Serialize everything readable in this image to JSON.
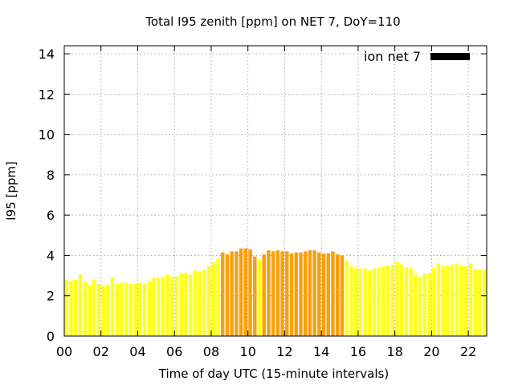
{
  "chart_data": {
    "type": "bar",
    "title": "Total I95 zenith [ppm] on NET 7, DoY=110",
    "xlabel": "Time of day UTC (15-minute intervals)",
    "ylabel": "I95 [ppm]",
    "xlim": [
      0,
      23
    ],
    "ylim": [
      0,
      14.4
    ],
    "grid": true,
    "legend_position": "top-right",
    "xtick_labels": [
      "00",
      "02",
      "04",
      "06",
      "08",
      "10",
      "12",
      "14",
      "16",
      "18",
      "20",
      "22"
    ],
    "xticks": [
      0,
      2,
      4,
      6,
      8,
      10,
      12,
      14,
      16,
      18,
      20,
      22
    ],
    "yticks": [
      0,
      2,
      4,
      6,
      8,
      10,
      12,
      14
    ],
    "colors": {
      "low": "#ffff1e",
      "high": "#f7a010",
      "legend": "#000000"
    },
    "series": [
      {
        "name": "ion net 7",
        "x": [
          0.125,
          0.375,
          0.625,
          0.875,
          1.125,
          1.375,
          1.625,
          1.875,
          2.125,
          2.375,
          2.625,
          2.875,
          3.125,
          3.375,
          3.625,
          3.875,
          4.125,
          4.375,
          4.625,
          4.875,
          5.125,
          5.375,
          5.625,
          5.875,
          6.125,
          6.375,
          6.625,
          6.875,
          7.125,
          7.375,
          7.625,
          7.875,
          8.125,
          8.375,
          8.625,
          8.875,
          9.125,
          9.375,
          9.625,
          9.875,
          10.125,
          10.375,
          10.625,
          10.875,
          11.125,
          11.375,
          11.625,
          11.875,
          12.125,
          12.375,
          12.625,
          12.875,
          13.125,
          13.375,
          13.625,
          13.875,
          14.125,
          14.375,
          14.625,
          14.875,
          15.125,
          15.375,
          15.625,
          15.875,
          16.125,
          16.375,
          16.625,
          16.875,
          17.125,
          17.375,
          17.625,
          17.875,
          18.125,
          18.375,
          18.625,
          18.875,
          19.125,
          19.375,
          19.625,
          19.875,
          20.125,
          20.375,
          20.625,
          20.875,
          21.125,
          21.375,
          21.625,
          21.875,
          22.125,
          22.375,
          22.625,
          22.875
        ],
        "values": [
          2.8,
          2.75,
          2.8,
          3.05,
          2.7,
          2.55,
          2.8,
          2.6,
          2.5,
          2.55,
          2.9,
          2.6,
          2.65,
          2.65,
          2.6,
          2.6,
          2.65,
          2.6,
          2.7,
          2.9,
          2.9,
          2.95,
          3.05,
          2.95,
          2.95,
          3.1,
          3.15,
          3.05,
          3.25,
          3.2,
          3.3,
          3.45,
          3.65,
          3.85,
          4.15,
          4.05,
          4.2,
          4.2,
          4.35,
          4.35,
          4.3,
          3.95,
          3.8,
          4.05,
          4.25,
          4.2,
          4.25,
          4.2,
          4.2,
          4.1,
          4.15,
          4.15,
          4.2,
          4.25,
          4.25,
          4.15,
          4.1,
          4.1,
          4.2,
          4.05,
          4.0,
          3.75,
          3.45,
          3.4,
          3.35,
          3.35,
          3.25,
          3.35,
          3.4,
          3.45,
          3.5,
          3.55,
          3.7,
          3.55,
          3.4,
          3.4,
          3.05,
          2.95,
          3.1,
          3.1,
          3.4,
          3.6,
          3.45,
          3.5,
          3.55,
          3.6,
          3.5,
          3.45,
          3.6,
          3.3,
          3.3,
          3.3
        ]
      }
    ]
  }
}
